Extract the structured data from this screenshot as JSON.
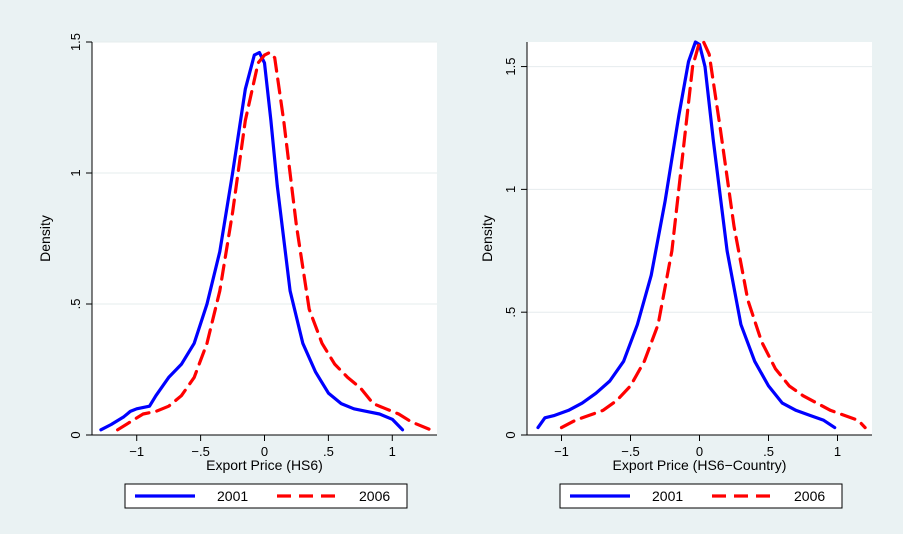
{
  "colors": {
    "background": "#eaf2f3",
    "plot_background": "#ffffff",
    "grid": "#e6ecee",
    "series_2001": "#0000ff",
    "series_2006": "#ff0000"
  },
  "chart_data": [
    {
      "type": "line",
      "xlabel": "Export Price (HS6)",
      "ylabel": "Density",
      "xlim": [
        -1.35,
        1.35
      ],
      "ylim": [
        0,
        1.5
      ],
      "xticks": [
        -1,
        -0.5,
        0,
        0.5,
        1
      ],
      "xtick_labels": [
        "−1",
        "−.5",
        "0",
        ".5",
        "1"
      ],
      "yticks": [
        0,
        0.5,
        1,
        1.5
      ],
      "ytick_labels": [
        "0",
        ".5",
        "1",
        "1.5"
      ],
      "grid": true,
      "legend_position": "bottom",
      "series": [
        {
          "name": "2001",
          "style": "solid",
          "x": [
            -1.28,
            -1.2,
            -1.1,
            -1.05,
            -1.0,
            -0.9,
            -0.85,
            -0.75,
            -0.65,
            -0.55,
            -0.45,
            -0.35,
            -0.25,
            -0.15,
            -0.08,
            -0.04,
            0.0,
            0.05,
            0.1,
            0.2,
            0.3,
            0.4,
            0.5,
            0.6,
            0.7,
            0.8,
            0.9,
            1.0,
            1.08
          ],
          "y": [
            0.02,
            0.04,
            0.07,
            0.09,
            0.1,
            0.11,
            0.15,
            0.22,
            0.27,
            0.35,
            0.5,
            0.7,
            1.0,
            1.32,
            1.45,
            1.46,
            1.42,
            1.2,
            0.95,
            0.55,
            0.35,
            0.24,
            0.16,
            0.12,
            0.1,
            0.09,
            0.08,
            0.06,
            0.02
          ]
        },
        {
          "name": "2006",
          "style": "dashed",
          "x": [
            -1.15,
            -1.05,
            -0.95,
            -0.85,
            -0.75,
            -0.65,
            -0.55,
            -0.45,
            -0.35,
            -0.25,
            -0.15,
            -0.05,
            0.0,
            0.04,
            0.08,
            0.15,
            0.25,
            0.35,
            0.45,
            0.55,
            0.65,
            0.75,
            0.85,
            0.95,
            1.05,
            1.15,
            1.3
          ],
          "y": [
            0.02,
            0.05,
            0.08,
            0.09,
            0.11,
            0.15,
            0.22,
            0.35,
            0.55,
            0.85,
            1.2,
            1.42,
            1.45,
            1.46,
            1.44,
            1.2,
            0.8,
            0.48,
            0.35,
            0.27,
            0.22,
            0.18,
            0.12,
            0.1,
            0.08,
            0.05,
            0.02
          ]
        }
      ]
    },
    {
      "type": "line",
      "xlabel": "Export Price (HS6−Country)",
      "ylabel": "Density",
      "xlim": [
        -1.25,
        1.25
      ],
      "ylim": [
        0,
        1.6
      ],
      "xticks": [
        -1,
        -0.5,
        0,
        0.5,
        1
      ],
      "xtick_labels": [
        "−1",
        "−.5",
        "0",
        ".5",
        "1"
      ],
      "yticks": [
        0,
        0.5,
        1,
        1.5
      ],
      "ytick_labels": [
        "0",
        ".5",
        "1",
        "1.5"
      ],
      "grid": true,
      "legend_position": "bottom",
      "series": [
        {
          "name": "2001",
          "style": "solid",
          "x": [
            -1.17,
            -1.12,
            -1.05,
            -0.95,
            -0.85,
            -0.75,
            -0.65,
            -0.55,
            -0.45,
            -0.35,
            -0.25,
            -0.15,
            -0.08,
            -0.03,
            0.0,
            0.04,
            0.1,
            0.2,
            0.3,
            0.4,
            0.5,
            0.6,
            0.7,
            0.8,
            0.9,
            0.98
          ],
          "y": [
            0.03,
            0.07,
            0.08,
            0.1,
            0.13,
            0.17,
            0.22,
            0.3,
            0.45,
            0.65,
            0.95,
            1.3,
            1.52,
            1.6,
            1.59,
            1.5,
            1.2,
            0.75,
            0.45,
            0.3,
            0.2,
            0.13,
            0.1,
            0.08,
            0.06,
            0.03
          ]
        },
        {
          "name": "2006",
          "style": "dashed",
          "x": [
            -1.0,
            -0.9,
            -0.8,
            -0.7,
            -0.6,
            -0.5,
            -0.4,
            -0.3,
            -0.2,
            -0.1,
            -0.05,
            0.0,
            0.03,
            0.07,
            0.15,
            0.25,
            0.35,
            0.45,
            0.55,
            0.65,
            0.75,
            0.85,
            0.95,
            1.05,
            1.15,
            1.2
          ],
          "y": [
            0.03,
            0.06,
            0.08,
            0.1,
            0.14,
            0.2,
            0.3,
            0.45,
            0.75,
            1.25,
            1.5,
            1.6,
            1.6,
            1.55,
            1.25,
            0.85,
            0.55,
            0.38,
            0.27,
            0.2,
            0.16,
            0.13,
            0.1,
            0.08,
            0.06,
            0.03
          ]
        }
      ]
    }
  ]
}
